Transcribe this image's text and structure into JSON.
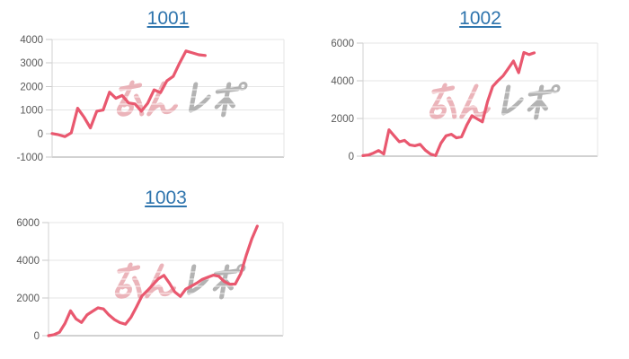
{
  "page": {
    "background": "#ffffff"
  },
  "styles": {
    "line_color": "#e9586f",
    "title_link_color": "#2e74ad",
    "axis_label_color": "#595959",
    "grid_color": "#e6e6e6",
    "axis_edge_color": "#d2d2d2",
    "axis_bottom_color": "#a5a5a5",
    "tick_color": "#c9c9c9",
    "watermark_pink": "#e8a7ae",
    "watermark_gray": "#ababab"
  },
  "watermark": {
    "text": "みんレポ"
  },
  "chart_data": [
    {
      "type": "line",
      "title": "1001",
      "title_is_link": true,
      "xlabel": "",
      "ylabel": "",
      "ylim": [
        -1000,
        4000
      ],
      "yticks": [
        4000,
        3000,
        2000,
        1000,
        0,
        -1000
      ],
      "grid": true,
      "legend": null,
      "x_fill": 0.66,
      "watermark": "みんレポ",
      "values": [
        0,
        -50,
        -130,
        30,
        1075,
        700,
        240,
        950,
        1000,
        1760,
        1500,
        1620,
        1300,
        1260,
        950,
        1290,
        1860,
        1740,
        2240,
        2430,
        3000,
        3510,
        3430,
        3350,
        3320
      ]
    },
    {
      "type": "line",
      "title": "1002",
      "title_is_link": true,
      "xlabel": "",
      "ylabel": "",
      "ylim": [
        0,
        6000
      ],
      "yticks": [
        6000,
        4000,
        2000,
        0
      ],
      "grid": true,
      "legend": null,
      "x_fill": 0.73,
      "watermark": "みんレポ",
      "values": [
        30,
        60,
        160,
        300,
        115,
        1400,
        1080,
        760,
        840,
        600,
        550,
        630,
        320,
        110,
        30,
        680,
        1080,
        1160,
        970,
        1030,
        1650,
        2150,
        1980,
        1820,
        2900,
        3700,
        4000,
        4260,
        4650,
        5050,
        4430,
        5500,
        5390,
        5480
      ]
    },
    {
      "type": "line",
      "title": "1003",
      "title_is_link": true,
      "xlabel": "",
      "ylabel": "",
      "ylim": [
        0,
        6000
      ],
      "yticks": [
        6000,
        4000,
        2000,
        0
      ],
      "grid": true,
      "legend": null,
      "x_fill": 0.89,
      "watermark": "みんレポ",
      "values": [
        0,
        50,
        180,
        650,
        1320,
        890,
        700,
        1100,
        1290,
        1475,
        1420,
        1100,
        850,
        690,
        610,
        970,
        1520,
        2100,
        2390,
        2700,
        3020,
        3200,
        2790,
        2315,
        2080,
        2470,
        2630,
        2790,
        2990,
        3100,
        3210,
        3150,
        2870,
        2730,
        2740,
        3300,
        4270,
        5130,
        5810
      ]
    }
  ]
}
